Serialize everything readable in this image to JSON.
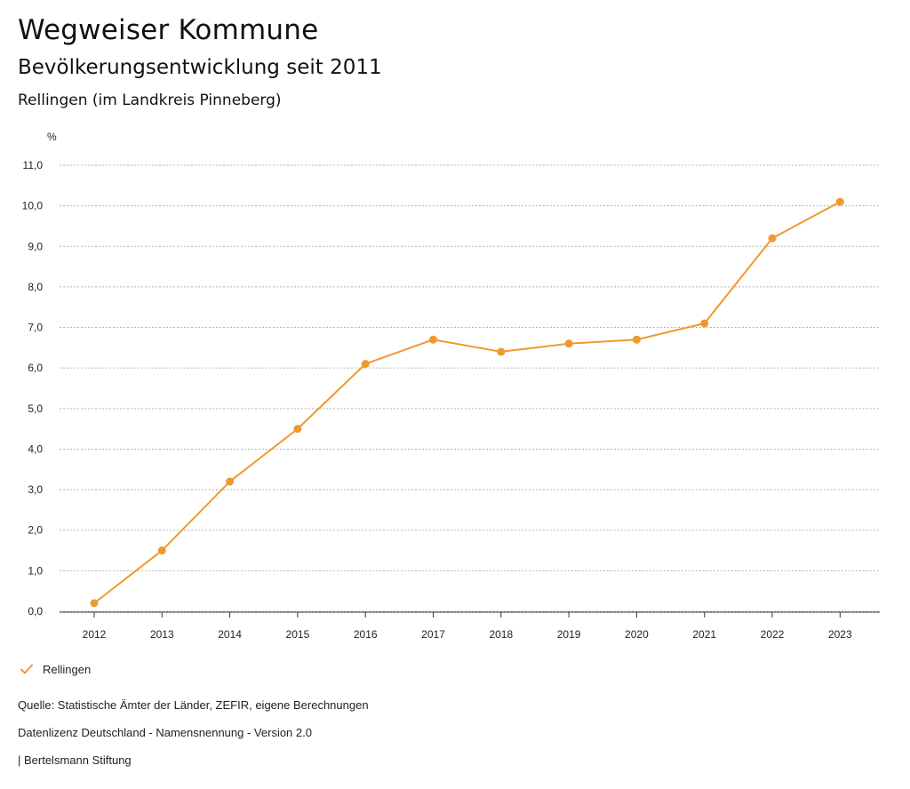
{
  "header": {
    "title": "Wegweiser Kommune",
    "subtitle": "Bevölkerungsentwicklung seit 2011",
    "region": "Rellingen (im Landkreis Pinneberg)"
  },
  "chart_data": {
    "type": "line",
    "title": "Bevölkerungsentwicklung seit 2011",
    "ylabel": "%",
    "xlabel": "",
    "ylim": [
      0,
      11
    ],
    "yticks": [
      "0,0",
      "1,0",
      "2,0",
      "3,0",
      "4,0",
      "5,0",
      "6,0",
      "7,0",
      "8,0",
      "9,0",
      "10,0",
      "11,0"
    ],
    "categories": [
      "2012",
      "2013",
      "2014",
      "2015",
      "2016",
      "2017",
      "2018",
      "2019",
      "2020",
      "2021",
      "2022",
      "2023"
    ],
    "series": [
      {
        "name": "Rellingen",
        "color": "#f0992e",
        "values": [
          0.2,
          1.5,
          3.2,
          4.5,
          6.1,
          6.7,
          6.4,
          6.6,
          6.7,
          7.1,
          9.2,
          10.1
        ]
      }
    ],
    "grid": true,
    "legend": "bottom-left"
  },
  "legend": {
    "label": "Rellingen",
    "color": "#f0992e"
  },
  "footer": {
    "source": "Quelle: Statistische Ämter der Länder, ZEFIR, eigene Berechnungen",
    "license": "Datenlizenz Deutschland - Namensnennung - Version 2.0",
    "publisher": "| Bertelsmann Stiftung"
  }
}
